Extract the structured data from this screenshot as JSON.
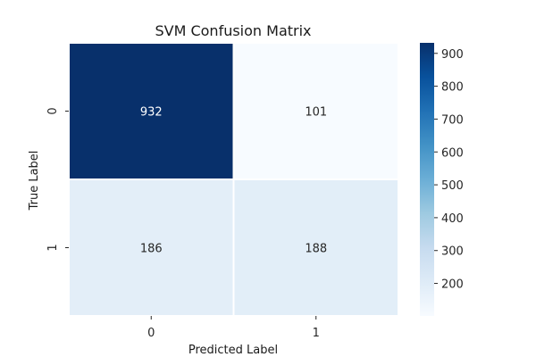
{
  "chart_data": {
    "type": "heatmap",
    "title": "SVM Confusion Matrix",
    "xlabel": "Predicted Label",
    "ylabel": "True Label",
    "x_categories": [
      "0",
      "1"
    ],
    "y_categories": [
      "0",
      "1"
    ],
    "values": [
      [
        932,
        101
      ],
      [
        186,
        188
      ]
    ],
    "colormap": "Blues",
    "value_range": [
      101,
      932
    ],
    "colorbar": {
      "ticks": [
        200,
        300,
        400,
        500,
        600,
        700,
        800,
        900
      ],
      "tick_labels": [
        "200",
        "300",
        "400",
        "500",
        "600",
        "700",
        "800",
        "900"
      ]
    },
    "grid": false
  }
}
